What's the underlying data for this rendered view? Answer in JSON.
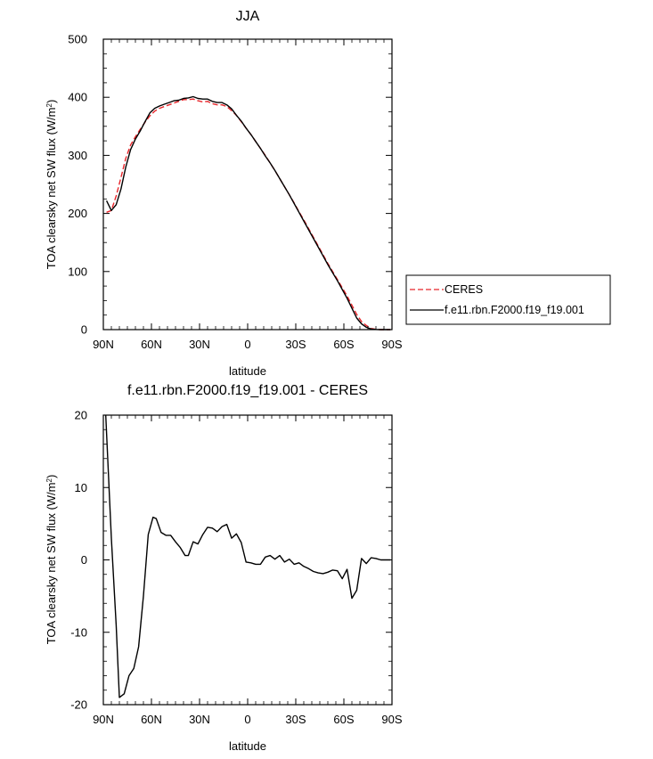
{
  "chart_data": [
    {
      "type": "line",
      "title": "JJA",
      "xlabel": "latitude",
      "ylabel": "TOA clearsky net SW flux (W/m",
      "ylabel_sup": "2",
      "ylabel_close": ")",
      "xlim": [
        90,
        -90
      ],
      "ylim": [
        0,
        500
      ],
      "xticks": [
        90,
        60,
        30,
        0,
        -30,
        -60,
        -90
      ],
      "xtick_labels": [
        "90N",
        "60N",
        "30N",
        "0",
        "30S",
        "60S",
        "90S"
      ],
      "yticks": [
        0,
        100,
        200,
        300,
        400,
        500
      ],
      "ytick_labels": [
        "0",
        "100",
        "200",
        "300",
        "400",
        "500"
      ],
      "legend_position": "right",
      "series": [
        {
          "name": "CERES",
          "color": "#e8262b",
          "dash": "dashed",
          "x": [
            88,
            85,
            82,
            79,
            76,
            73,
            70,
            67,
            64,
            61,
            58,
            55,
            52,
            49,
            46,
            43,
            40,
            37,
            34,
            31,
            28,
            25,
            22,
            19,
            16,
            13,
            10,
            7,
            4,
            1,
            -2,
            -5,
            -8,
            -11,
            -14,
            -17,
            -20,
            -23,
            -26,
            -29,
            -32,
            -35,
            -38,
            -41,
            -44,
            -47,
            -50,
            -53,
            -56,
            -59,
            -62,
            -65,
            -68,
            -71,
            -74,
            -77,
            -80,
            -83,
            -86,
            -89
          ],
          "y": [
            202,
            205,
            230,
            262,
            295,
            318,
            332,
            345,
            357,
            368,
            376,
            381,
            384,
            387,
            390,
            393,
            396,
            396,
            397,
            394,
            392,
            393,
            389,
            387,
            387,
            384,
            377,
            369,
            358,
            347,
            336,
            324,
            312,
            300,
            287,
            274,
            260,
            246,
            232,
            218,
            203,
            189,
            174,
            159,
            144,
            129,
            114,
            100,
            86,
            72,
            58,
            42,
            26,
            14,
            7,
            2,
            0.5,
            0,
            0,
            0
          ]
        },
        {
          "name": "f.e11.rbn.F2000.f19_f19.001",
          "color": "#000000",
          "dash": "solid",
          "x": [
            88,
            85,
            82,
            79,
            76,
            73,
            70,
            67,
            64,
            61,
            58,
            55,
            52,
            49,
            46,
            43,
            40,
            37,
            34,
            31,
            28,
            25,
            22,
            19,
            16,
            13,
            10,
            7,
            4,
            1,
            -2,
            -5,
            -8,
            -11,
            -14,
            -17,
            -20,
            -23,
            -26,
            -29,
            -32,
            -35,
            -38,
            -41,
            -44,
            -47,
            -50,
            -53,
            -56,
            -59,
            -62,
            -65,
            -68,
            -71,
            -74,
            -77,
            -80,
            -83,
            -86,
            -89
          ],
          "y": [
            222,
            205,
            215,
            242,
            280,
            310,
            328,
            342,
            358,
            373,
            381,
            385,
            388,
            391,
            394,
            395,
            398,
            399,
            401,
            398,
            397,
            397,
            393,
            391,
            391,
            387,
            380,
            369,
            359,
            347,
            336,
            324,
            312,
            299,
            287,
            274,
            260,
            246,
            232,
            217,
            202,
            187,
            172,
            157,
            142,
            127,
            112,
            98,
            84,
            69,
            54,
            37,
            20,
            10,
            4,
            1,
            0.3,
            0,
            0,
            0
          ]
        }
      ]
    },
    {
      "type": "line",
      "title": "f.e11.rbn.F2000.f19_f19.001 - CERES",
      "xlabel": "latitude",
      "ylabel": "TOA clearsky net SW flux (W/m",
      "ylabel_sup": "2",
      "ylabel_close": ")",
      "xlim": [
        90,
        -90
      ],
      "ylim": [
        -20,
        20
      ],
      "xticks": [
        90,
        60,
        30,
        0,
        -30,
        -60,
        -90
      ],
      "xtick_labels": [
        "90N",
        "60N",
        "30N",
        "0",
        "30S",
        "60S",
        "90S"
      ],
      "yticks": [
        -20,
        -10,
        0,
        10,
        20
      ],
      "ytick_labels": [
        "-20",
        "-10",
        "0",
        "10",
        "20"
      ],
      "series": [
        {
          "color": "#000000",
          "dash": "solid",
          "x": [
            88.5,
            85,
            82,
            80,
            77,
            74,
            71,
            68,
            65,
            62,
            59,
            57,
            54,
            51,
            48,
            45,
            42,
            39,
            37,
            34,
            31,
            28,
            25,
            22,
            19,
            16,
            13,
            10,
            7,
            4,
            1,
            -2,
            -5,
            -8,
            -11,
            -14,
            -17,
            -20,
            -23,
            -26,
            -29,
            -32,
            -35,
            -38,
            -41,
            -44,
            -47,
            -50,
            -53,
            -56,
            -59,
            -62,
            -65,
            -68,
            -71,
            -74,
            -77,
            -80,
            -83,
            -86,
            -89
          ],
          "y": [
            20.5,
            3,
            -9,
            -19,
            -18.5,
            -16,
            -15,
            -12,
            -5,
            3.5,
            5.9,
            5.7,
            3.8,
            3.4,
            3.4,
            2.5,
            1.7,
            0.6,
            0.6,
            2.5,
            2.2,
            3.5,
            4.5,
            4.4,
            3.9,
            4.6,
            4.9,
            3.0,
            3.6,
            2.4,
            -0.3,
            -0.4,
            -0.6,
            -0.6,
            0.4,
            0.6,
            0.1,
            0.6,
            -0.3,
            0.1,
            -0.6,
            -0.4,
            -0.9,
            -1.2,
            -1.6,
            -1.8,
            -1.9,
            -1.7,
            -1.4,
            -1.5,
            -2.6,
            -1.3,
            -5.3,
            -4.2,
            0.2,
            -0.5,
            0.3,
            0.2,
            0,
            0,
            0
          ]
        }
      ]
    }
  ]
}
